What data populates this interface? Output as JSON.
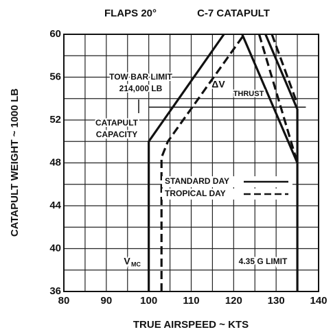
{
  "chart_data": {
    "type": "line",
    "title": "FLAPS 20°",
    "subtitle": "C-7 CATAPULT",
    "x_label": "TRUE AIRSPEED ~ KTS",
    "y_label": "CATAPULT WEIGHT ~ 1000 LB",
    "xlim": [
      80,
      140
    ],
    "ylim": [
      36,
      60
    ],
    "xticks": [
      80,
      90,
      100,
      110,
      120,
      130,
      140
    ],
    "yticks": [
      36,
      40,
      44,
      48,
      52,
      56,
      60
    ],
    "xgrid": [
      80,
      85,
      90,
      95,
      100,
      105,
      110,
      115,
      120,
      125,
      130,
      135,
      140
    ],
    "ygrid": [
      36,
      38,
      40,
      42,
      44,
      46,
      48,
      50,
      52,
      54,
      56,
      58,
      60
    ],
    "grid": true,
    "series": [
      {
        "name": "STANDARD DAY",
        "color": "#111111",
        "dash": false,
        "x": [
          100,
          100,
          117.7,
          null,
          122,
          135,
          null,
          127.5,
          135,
          135
        ],
        "values": [
          36,
          50,
          60,
          null,
          60,
          48,
          null,
          60,
          53,
          36
        ]
      },
      {
        "name": "TROPICAL DAY",
        "color": "#111111",
        "dash": true,
        "x": [
          103,
          103,
          104.5,
          122.5,
          null,
          126,
          135,
          null,
          129,
          135
        ],
        "values": [
          36,
          48.5,
          50,
          60,
          null,
          60,
          48,
          null,
          60,
          53.5
        ]
      }
    ],
    "reference_line": {
      "y": 53.2,
      "x": [
        100,
        137
      ]
    },
    "annotations": [
      "TOW BAR LIMIT",
      "214,000 LB",
      "CATAPULT",
      "CAPACITY",
      "ΔV",
      "THRUST",
      "V",
      "MC",
      "4.35 G LIMIT"
    ]
  }
}
